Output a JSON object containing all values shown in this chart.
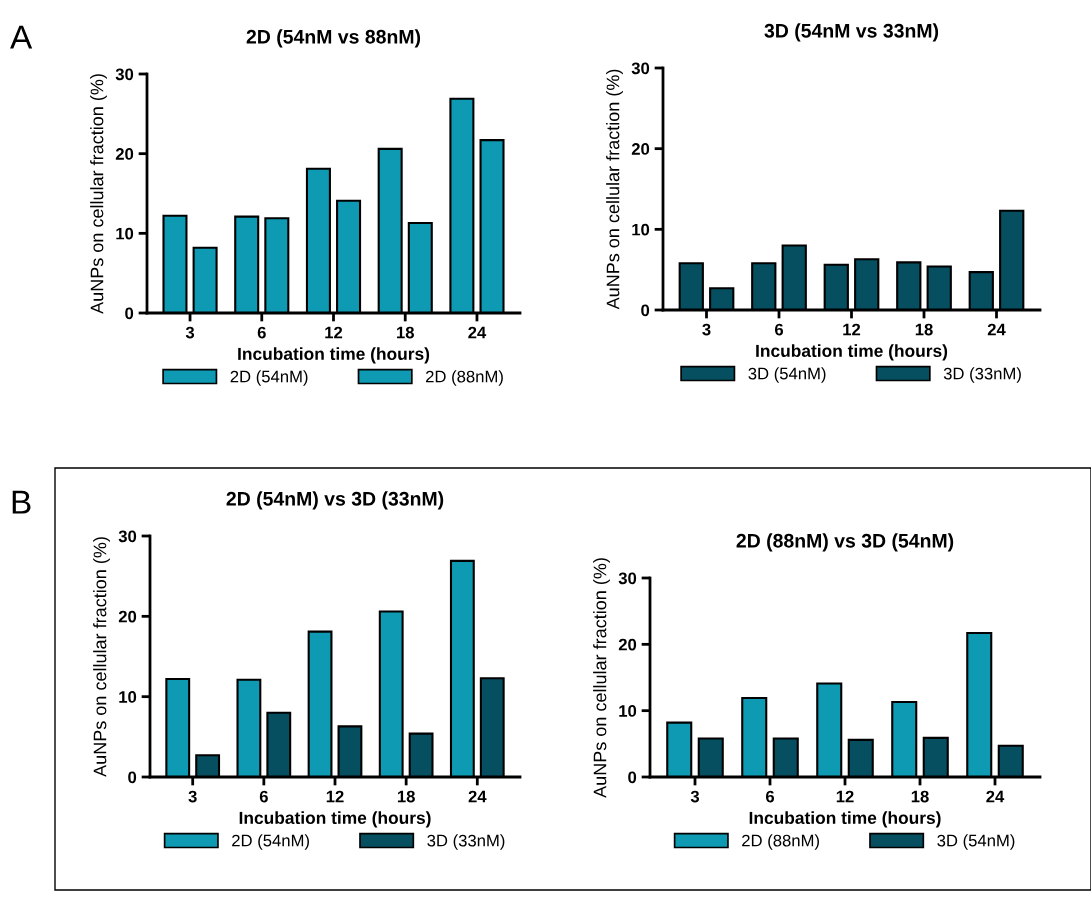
{
  "chart_data": [
    {
      "type": "bar",
      "title": "2D (54nM vs 88nM)",
      "xlabel": "Incubation time (hours)",
      "ylabel": "AuNPs on cellular fraction (%)",
      "categories": [
        "3",
        "6",
        "12",
        "18",
        "24"
      ],
      "ylim": [
        0,
        30
      ],
      "yticks": [
        0,
        10,
        20,
        30
      ],
      "legend": "bottom",
      "annotations": [
        "A"
      ],
      "series": [
        {
          "name": "2D (54nM)",
          "color": "#0e9ab2",
          "values": [
            12.2,
            12.1,
            18.1,
            20.6,
            26.9
          ]
        },
        {
          "name": "2D (88nM)",
          "color": "#0e9ab2",
          "values": [
            8.2,
            11.9,
            14.1,
            11.3,
            21.7
          ]
        }
      ]
    },
    {
      "type": "bar",
      "title": "3D (54nM vs 33nM)",
      "xlabel": "Incubation time (hours)",
      "ylabel": "AuNPs on cellular fraction (%)",
      "categories": [
        "3",
        "6",
        "12",
        "18",
        "24"
      ],
      "ylim": [
        0,
        30
      ],
      "yticks": [
        0,
        10,
        20,
        30
      ],
      "legend": "bottom",
      "series": [
        {
          "name": "3D (54nM)",
          "color": "#064f60",
          "values": [
            5.8,
            5.8,
            5.6,
            5.9,
            4.7
          ]
        },
        {
          "name": "3D (33nM)",
          "color": "#064f60",
          "values": [
            2.7,
            8.0,
            6.3,
            5.4,
            12.3
          ]
        }
      ]
    },
    {
      "type": "bar",
      "title": "2D (54nM) vs 3D (33nM)",
      "xlabel": "Incubation time (hours)",
      "ylabel": "AuNPs on cellular fraction (%)",
      "categories": [
        "3",
        "6",
        "12",
        "18",
        "24"
      ],
      "ylim": [
        0,
        30
      ],
      "yticks": [
        0,
        10,
        20,
        30
      ],
      "legend": "bottom",
      "annotations": [
        "B"
      ],
      "series": [
        {
          "name": "2D (54nM)",
          "color": "#0e9ab2",
          "values": [
            12.2,
            12.1,
            18.1,
            20.6,
            26.9
          ]
        },
        {
          "name": "3D (33nM)",
          "color": "#064f60",
          "values": [
            2.7,
            8.0,
            6.3,
            5.4,
            12.3
          ]
        }
      ]
    },
    {
      "type": "bar",
      "title": "2D (88nM) vs 3D (54nM)",
      "xlabel": "Incubation time (hours)",
      "ylabel": "AuNPs on cellular fraction (%)",
      "categories": [
        "3",
        "6",
        "12",
        "18",
        "24"
      ],
      "ylim": [
        0,
        30
      ],
      "yticks": [
        0,
        10,
        20,
        30
      ],
      "legend": "bottom",
      "series": [
        {
          "name": "2D (88nM)",
          "color": "#0e9ab2",
          "values": [
            8.2,
            11.9,
            14.1,
            11.3,
            21.7
          ]
        },
        {
          "name": "3D (54nM)",
          "color": "#064f60",
          "values": [
            5.8,
            5.8,
            5.6,
            5.9,
            4.7
          ]
        }
      ]
    }
  ]
}
